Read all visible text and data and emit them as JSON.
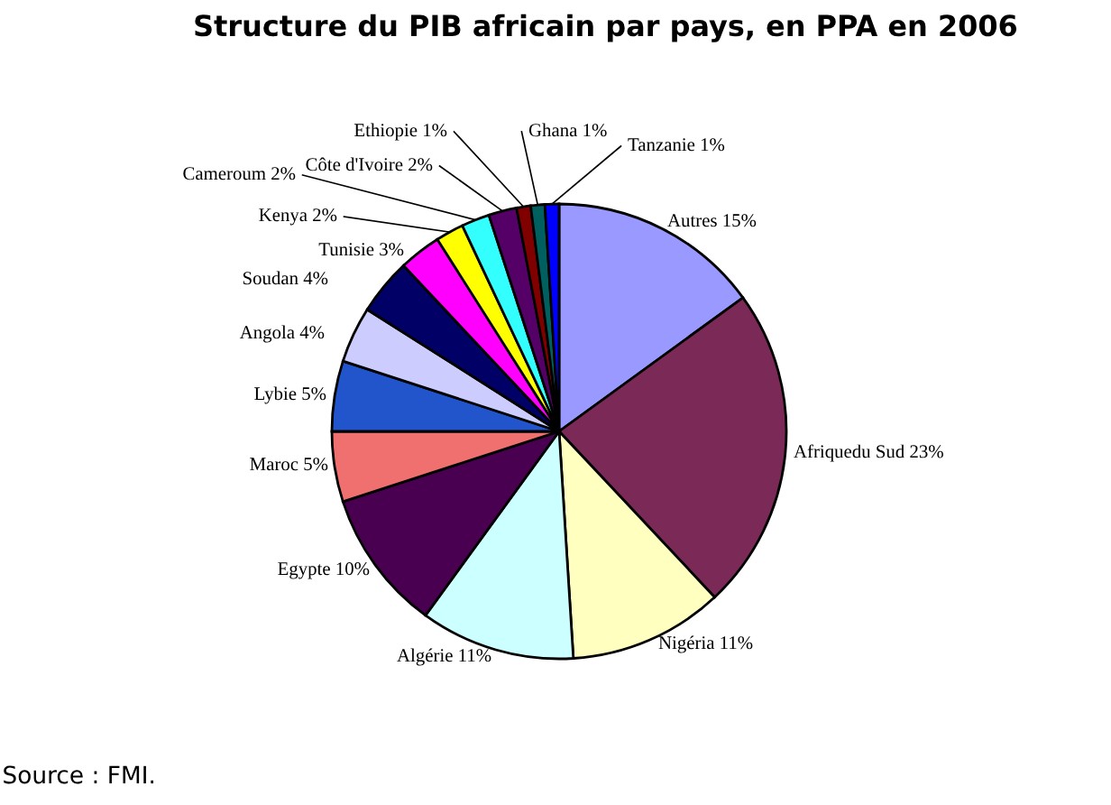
{
  "chart_data": {
    "type": "pie",
    "title": "Structure du PIB africain par pays, en PPA en 2006",
    "categories": [
      "Autres",
      "Afriquedu Sud",
      "Nigéria",
      "Algérie",
      "Egypte",
      "Maroc",
      "Lybie",
      "Angola",
      "Soudan",
      "Tunisie",
      "Kenya",
      "Cameroum",
      "Côte d'Ivoire",
      "Ethiopie",
      "Ghana",
      "Tanzanie"
    ],
    "values": [
      15,
      23,
      11,
      11,
      10,
      5,
      5,
      4,
      4,
      3,
      2,
      2,
      2,
      1,
      1,
      1
    ],
    "value_labels": [
      "15%",
      "23%",
      "11%",
      "11%",
      "10%",
      "5%",
      "5%",
      "4%",
      "4%",
      "3%",
      "2%",
      "2%",
      "2%",
      "1%",
      "1%",
      "1%"
    ],
    "colors": [
      "#9999ff",
      "#7b2a58",
      "#ffffc0",
      "#ccffff",
      "#4a0050",
      "#f07070",
      "#2255cc",
      "#ccccff",
      "#000066",
      "#ff00ff",
      "#ffff00",
      "#33ffff",
      "#550066",
      "#800000",
      "#006060",
      "#0000ff"
    ],
    "annotations": [
      "Source : FMI."
    ]
  }
}
